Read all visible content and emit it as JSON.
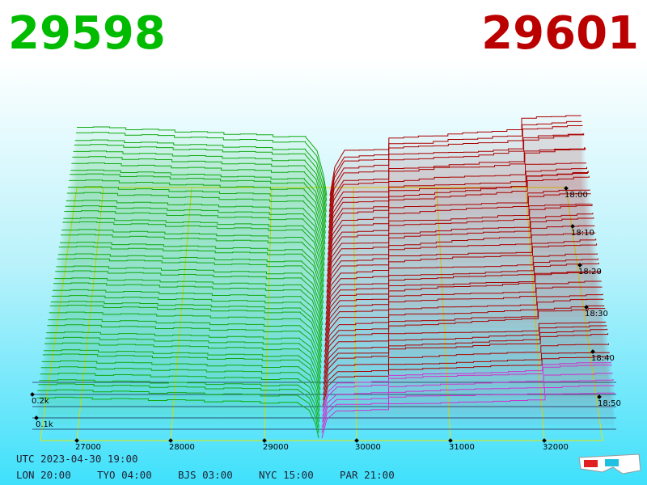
{
  "bid_price": "29598",
  "ask_price": "29601",
  "price_ticks": [
    "27000",
    "28000",
    "29000",
    "30000",
    "31000",
    "32000"
  ],
  "time_ticks": [
    "18:00",
    "18:10",
    "18:20",
    "18:30",
    "18:40",
    "18:50"
  ],
  "volume_ticks": [
    "0.2k",
    "0.1k"
  ],
  "utc": "UTC 2023-04-30 19:00",
  "clocks": [
    "LON 20:00",
    "TYO 04:00",
    "BJS 03:00",
    "NYC 15:00",
    "PAR 21:00"
  ]
}
